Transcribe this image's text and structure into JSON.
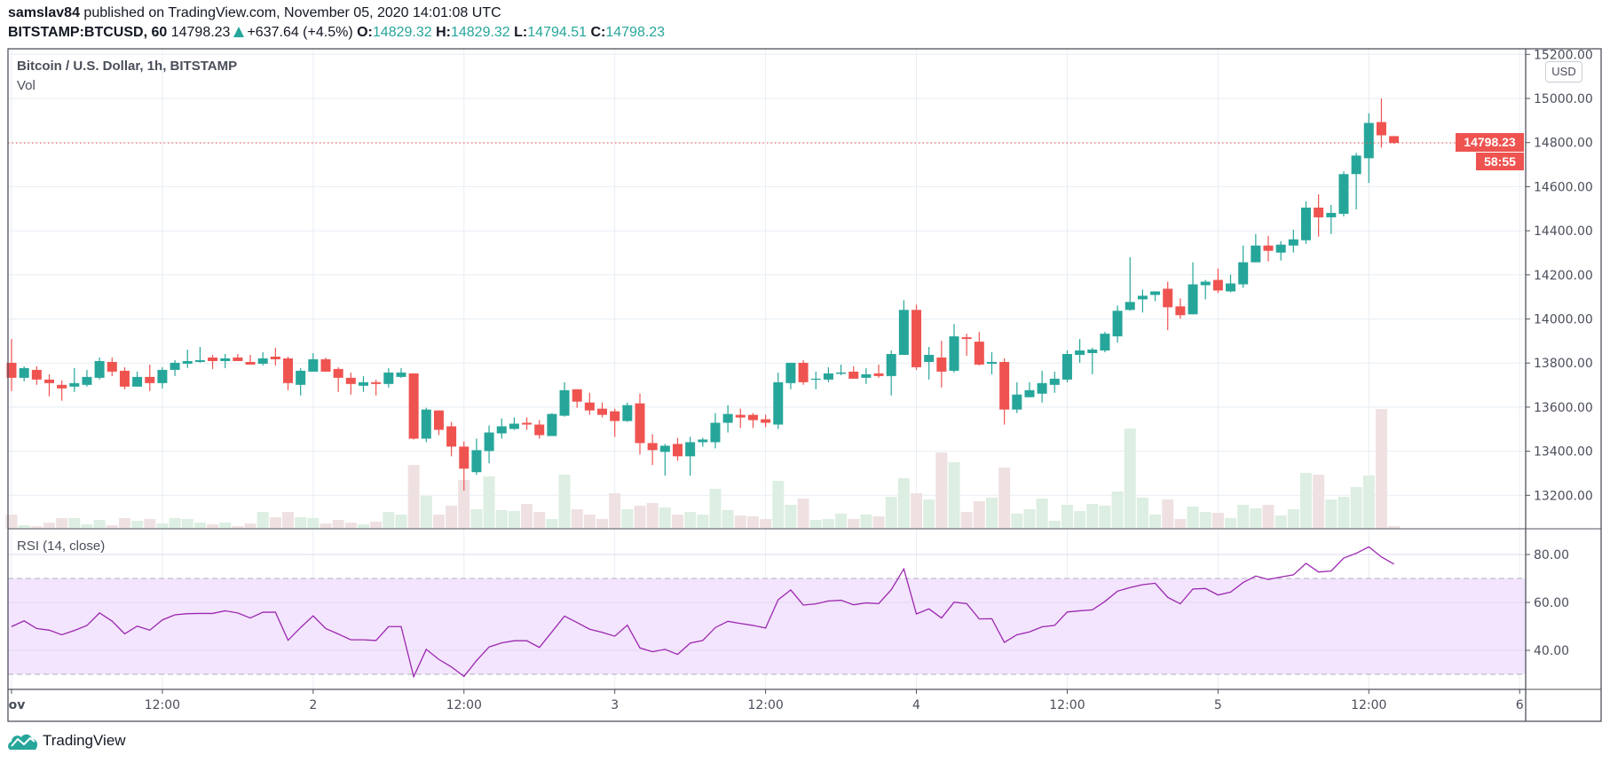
{
  "header": {
    "author": "samslav84",
    "published": " published on TradingView.com, November 05, 2020 14:01:08 UTC",
    "symbol": "BITSTAMP:BTCUSD, 60",
    "last": "14798.23",
    "change": "+637.64 (+4.5%)",
    "o_label": "O:",
    "o": "14829.32",
    "h_label": "H:",
    "h": "14829.32",
    "l_label": "L:",
    "l": "14794.51",
    "c_label": "C:",
    "c": "14798.23"
  },
  "legend": {
    "title": "Bitcoin / U.S. Dollar, 1h, BITSTAMP",
    "volume": "Vol",
    "rsi": "RSI (14, close)"
  },
  "currency_button": "USD",
  "last_price_label": "14798.23",
  "countdown": "58:55",
  "brand": "TradingView",
  "colors": {
    "up": "#26a69a",
    "down": "#ef5350",
    "rsi": "#9c27b0",
    "rsi_band": "#f3e5fd",
    "vol_up": "#ddeee2",
    "vol_down": "#efe1e2"
  },
  "chart_data": {
    "type": "candlestick",
    "x_start": "2020-11-01 00:00",
    "interval": "1h",
    "price_ylim": [
      13050,
      15200
    ],
    "price_ticks": [
      "13200.00",
      "13400.00",
      "13600.00",
      "13800.00",
      "14000.00",
      "14200.00",
      "14400.00",
      "14600.00",
      "14800.00",
      "15000.00",
      "15200.00"
    ],
    "price_tick_values": [
      13200,
      13400,
      13600,
      13800,
      14000,
      14200,
      14400,
      14600,
      14800,
      15000,
      15200
    ],
    "time_ticks": [
      "ov",
      "12:00",
      "2",
      "12:00",
      "3",
      "12:00",
      "4",
      "12:00",
      "5",
      "12:00",
      "6"
    ],
    "last_price": 14798.23,
    "ohlc": [
      [
        13801,
        13909,
        13673,
        13733
      ],
      [
        13733,
        13785,
        13717,
        13777
      ],
      [
        13769,
        13785,
        13701,
        13725
      ],
      [
        13725,
        13749,
        13649,
        13709
      ],
      [
        13701,
        13721,
        13629,
        13685
      ],
      [
        13693,
        13777,
        13669,
        13709
      ],
      [
        13701,
        13769,
        13693,
        13737
      ],
      [
        13733,
        13825,
        13725,
        13809
      ],
      [
        13805,
        13825,
        13741,
        13761
      ],
      [
        13765,
        13781,
        13681,
        13693
      ],
      [
        13693,
        13761,
        13693,
        13737
      ],
      [
        13737,
        13793,
        13673,
        13709
      ],
      [
        13709,
        13781,
        13685,
        13769
      ],
      [
        13769,
        13813,
        13741,
        13801
      ],
      [
        13797,
        13861,
        13777,
        13809
      ],
      [
        13805,
        13873,
        13801,
        13813
      ],
      [
        13825,
        13837,
        13773,
        13809
      ],
      [
        13809,
        13841,
        13777,
        13821
      ],
      [
        13825,
        13841,
        13813,
        13809
      ],
      [
        13805,
        13837,
        13797,
        13793
      ],
      [
        13797,
        13849,
        13789,
        13821
      ],
      [
        13829,
        13869,
        13789,
        13817
      ],
      [
        13821,
        13829,
        13677,
        13709
      ],
      [
        13701,
        13777,
        13653,
        13765
      ],
      [
        13761,
        13845,
        13761,
        13817
      ],
      [
        13817,
        13825,
        13761,
        13761
      ],
      [
        13773,
        13781,
        13669,
        13733
      ],
      [
        13733,
        13757,
        13657,
        13705
      ],
      [
        13697,
        13741,
        13669,
        13713
      ],
      [
        13713,
        13725,
        13653,
        13705
      ],
      [
        13705,
        13777,
        13689,
        13757
      ],
      [
        13737,
        13777,
        13733,
        13757
      ],
      [
        13753,
        13753,
        13453,
        13457
      ],
      [
        13457,
        13597,
        13441,
        13589
      ],
      [
        13585,
        13585,
        13473,
        13497
      ],
      [
        13513,
        13533,
        13377,
        13421
      ],
      [
        13421,
        13445,
        13221,
        13321
      ],
      [
        13305,
        13457,
        13293,
        13405
      ],
      [
        13401,
        13517,
        13345,
        13485
      ],
      [
        13481,
        13549,
        13457,
        13513
      ],
      [
        13501,
        13553,
        13497,
        13525
      ],
      [
        13529,
        13553,
        13497,
        13521
      ],
      [
        13521,
        13541,
        13457,
        13473
      ],
      [
        13469,
        13573,
        13469,
        13569
      ],
      [
        13561,
        13713,
        13557,
        13677
      ],
      [
        13681,
        13681,
        13597,
        13625
      ],
      [
        13621,
        13665,
        13565,
        13585
      ],
      [
        13593,
        13621,
        13553,
        13565
      ],
      [
        13581,
        13593,
        13465,
        13537
      ],
      [
        13537,
        13621,
        13533,
        13609
      ],
      [
        13617,
        13661,
        13385,
        13437
      ],
      [
        13437,
        13477,
        13337,
        13405
      ],
      [
        13397,
        13433,
        13289,
        13425
      ],
      [
        13433,
        13461,
        13357,
        13377
      ],
      [
        13377,
        13465,
        13289,
        13441
      ],
      [
        13441,
        13461,
        13421,
        13453
      ],
      [
        13441,
        13573,
        13413,
        13529
      ],
      [
        13529,
        13609,
        13485,
        13569
      ],
      [
        13565,
        13593,
        13505,
        13553
      ],
      [
        13565,
        13573,
        13505,
        13541
      ],
      [
        13545,
        13565,
        13509,
        13529
      ],
      [
        13521,
        13757,
        13501,
        13713
      ],
      [
        13709,
        13801,
        13681,
        13801
      ],
      [
        13801,
        13813,
        13701,
        13713
      ],
      [
        13725,
        13761,
        13681,
        13729
      ],
      [
        13725,
        13781,
        13713,
        13753
      ],
      [
        13751,
        13793,
        13745,
        13757
      ],
      [
        13761,
        13785,
        13729,
        13729
      ],
      [
        13733,
        13777,
        13705,
        13749
      ],
      [
        13753,
        13793,
        13733,
        13741
      ],
      [
        13741,
        13857,
        13653,
        13841
      ],
      [
        13837,
        14085,
        13837,
        14041
      ],
      [
        14041,
        14065,
        13769,
        13781
      ],
      [
        13805,
        13873,
        13725,
        13837
      ],
      [
        13825,
        13901,
        13689,
        13761
      ],
      [
        13765,
        13977,
        13757,
        13921
      ],
      [
        13917,
        13933,
        13833,
        13909
      ],
      [
        13897,
        13941,
        13789,
        13793
      ],
      [
        13797,
        13849,
        13749,
        13805
      ],
      [
        13805,
        13821,
        13521,
        13589
      ],
      [
        13589,
        13713,
        13573,
        13657
      ],
      [
        13645,
        13713,
        13645,
        13677
      ],
      [
        13661,
        13765,
        13621,
        13709
      ],
      [
        13701,
        13761,
        13665,
        13729
      ],
      [
        13725,
        13857,
        13713,
        13841
      ],
      [
        13837,
        13909,
        13801,
        13857
      ],
      [
        13845,
        13869,
        13749,
        13861
      ],
      [
        13857,
        13941,
        13849,
        13933
      ],
      [
        13921,
        14061,
        13893,
        14037
      ],
      [
        14041,
        14280,
        14037,
        14077
      ],
      [
        14089,
        14133,
        14029,
        14105
      ],
      [
        14109,
        14125,
        14081,
        14125
      ],
      [
        14137,
        14169,
        13949,
        14053
      ],
      [
        14057,
        14093,
        14001,
        14017
      ],
      [
        14021,
        14257,
        14021,
        14157
      ],
      [
        14153,
        14177,
        14089,
        14169
      ],
      [
        14177,
        14229,
        14117,
        14129
      ],
      [
        14125,
        14201,
        14121,
        14161
      ],
      [
        14157,
        14333,
        14141,
        14257
      ],
      [
        14257,
        14385,
        14257,
        14333
      ],
      [
        14333,
        14377,
        14261,
        14309
      ],
      [
        14301,
        14353,
        14265,
        14337
      ],
      [
        14333,
        14405,
        14301,
        14361
      ],
      [
        14357,
        14533,
        14341,
        14505
      ],
      [
        14505,
        14565,
        14373,
        14461
      ],
      [
        14461,
        14517,
        14385,
        14481
      ],
      [
        14477,
        14669,
        14465,
        14657
      ],
      [
        14657,
        14753,
        14497,
        14741
      ],
      [
        14729,
        14933,
        14617,
        14889
      ],
      [
        14893,
        15000,
        14777,
        14833
      ],
      [
        14829.32,
        14829.32,
        14794.51,
        14798.23
      ]
    ],
    "volume_relative": [
      48,
      12,
      9,
      21,
      36,
      36,
      15,
      30,
      12,
      36,
      27,
      33,
      18,
      36,
      33,
      21,
      15,
      21,
      9,
      18,
      57,
      39,
      57,
      39,
      36,
      18,
      30,
      21,
      15,
      24,
      57,
      48,
      216,
      111,
      48,
      78,
      165,
      66,
      177,
      63,
      60,
      84,
      57,
      33,
      183,
      66,
      48,
      33,
      120,
      66,
      78,
      87,
      72,
      48,
      57,
      48,
      135,
      63,
      45,
      42,
      33,
      162,
      81,
      102,
      30,
      33,
      51,
      33,
      48,
      42,
      108,
      171,
      120,
      99,
      258,
      225,
      57,
      93,
      105,
      207,
      51,
      66,
      102,
      27,
      81,
      60,
      84,
      78,
      126,
      339,
      105,
      48,
      99,
      33,
      75,
      57,
      54,
      36,
      81,
      69,
      81,
      45,
      66,
      189,
      183,
      99,
      108,
      141,
      180,
      405,
      9
    ],
    "rsi": {
      "period": 14,
      "upper": 70,
      "lower": 30,
      "ylim": [
        20,
        90
      ],
      "ticks": [
        "80.00",
        "60.00",
        "40.00"
      ],
      "tick_values": [
        80,
        60,
        40
      ],
      "values": [
        49.9,
        52.3,
        49.1,
        48.4,
        46.5,
        48.3,
        50.4,
        55.6,
        52.2,
        46.9,
        50.1,
        48.4,
        52.7,
        54.8,
        55.3,
        55.4,
        55.4,
        56.5,
        55.6,
        53.5,
        55.9,
        55.9,
        44.2,
        49.5,
        54.4,
        49.1,
        46.8,
        44.4,
        44.4,
        44.1,
        49.9,
        49.9,
        29.0,
        40.4,
        36.2,
        33.1,
        29.1,
        35.7,
        41.4,
        43.1,
        44.0,
        44.0,
        41.2,
        47.7,
        54.3,
        51.6,
        48.8,
        47.5,
        45.9,
        50.5,
        41.0,
        39.4,
        40.4,
        38.3,
        43.0,
        44.1,
        49.5,
        52.1,
        51.2,
        50.4,
        49.3,
        61.1,
        65.2,
        58.9,
        59.4,
        60.6,
        60.9,
        59.0,
        59.8,
        59.5,
        65.3,
        74.0,
        55.2,
        57.3,
        53.5,
        60.1,
        59.5,
        53.1,
        53.2,
        43.3,
        46.5,
        47.7,
        49.8,
        50.4,
        56.0,
        56.5,
        56.9,
        60.4,
        64.7,
        66.2,
        67.4,
        68.0,
        62.1,
        59.4,
        65.6,
        65.8,
        63.1,
        64.3,
        68.3,
        71.0,
        69.6,
        70.6,
        71.5,
        76.3,
        72.7,
        73.1,
        78.5,
        80.5,
        83.2,
        79.0,
        76.0
      ]
    },
    "grid": true
  }
}
